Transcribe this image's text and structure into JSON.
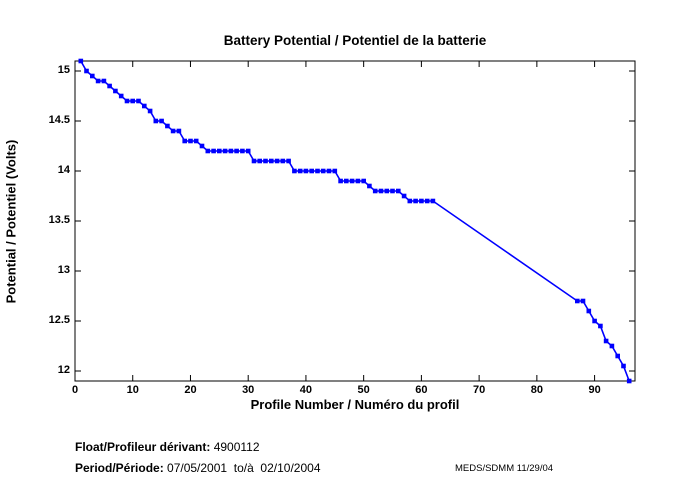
{
  "chart_data": {
    "type": "line",
    "title": "Battery Potential / Potentiel de la batterie",
    "xlabel": "Profile Number / Numéro du profil",
    "ylabel": "Potential / Potentiel (Volts)",
    "xlim": [
      0,
      97
    ],
    "ylim": [
      11.9,
      15.1
    ],
    "x_ticks": [
      0,
      10,
      20,
      30,
      40,
      50,
      60,
      70,
      80,
      90
    ],
    "y_ticks": [
      12,
      12.5,
      13,
      13.5,
      14,
      14.5,
      15
    ],
    "grid": false,
    "legend": "none",
    "line_color": "#0000FF",
    "marker": "square",
    "axis_color": "#000000",
    "series": [
      {
        "name": "battery_potential_volts",
        "points": [
          [
            1,
            15.1
          ],
          [
            2,
            15.0
          ],
          [
            3,
            14.95
          ],
          [
            4,
            14.9
          ],
          [
            5,
            14.9
          ],
          [
            6,
            14.85
          ],
          [
            7,
            14.8
          ],
          [
            8,
            14.75
          ],
          [
            9,
            14.7
          ],
          [
            10,
            14.7
          ],
          [
            11,
            14.7
          ],
          [
            12,
            14.65
          ],
          [
            13,
            14.6
          ],
          [
            14,
            14.5
          ],
          [
            15,
            14.5
          ],
          [
            16,
            14.45
          ],
          [
            17,
            14.4
          ],
          [
            18,
            14.4
          ],
          [
            19,
            14.3
          ],
          [
            20,
            14.3
          ],
          [
            21,
            14.3
          ],
          [
            22,
            14.25
          ],
          [
            23,
            14.2
          ],
          [
            24,
            14.2
          ],
          [
            25,
            14.2
          ],
          [
            26,
            14.2
          ],
          [
            27,
            14.2
          ],
          [
            28,
            14.2
          ],
          [
            29,
            14.2
          ],
          [
            30,
            14.2
          ],
          [
            31,
            14.1
          ],
          [
            32,
            14.1
          ],
          [
            33,
            14.1
          ],
          [
            34,
            14.1
          ],
          [
            35,
            14.1
          ],
          [
            36,
            14.1
          ],
          [
            37,
            14.1
          ],
          [
            38,
            14.0
          ],
          [
            39,
            14.0
          ],
          [
            40,
            14.0
          ],
          [
            41,
            14.0
          ],
          [
            42,
            14.0
          ],
          [
            43,
            14.0
          ],
          [
            44,
            14.0
          ],
          [
            45,
            14.0
          ],
          [
            46,
            13.9
          ],
          [
            47,
            13.9
          ],
          [
            48,
            13.9
          ],
          [
            49,
            13.9
          ],
          [
            50,
            13.9
          ],
          [
            51,
            13.85
          ],
          [
            52,
            13.8
          ],
          [
            53,
            13.8
          ],
          [
            54,
            13.8
          ],
          [
            55,
            13.8
          ],
          [
            56,
            13.8
          ],
          [
            57,
            13.75
          ],
          [
            58,
            13.7
          ],
          [
            59,
            13.7
          ],
          [
            60,
            13.7
          ],
          [
            61,
            13.7
          ],
          [
            62,
            13.7
          ],
          [
            87,
            12.7
          ],
          [
            88,
            12.7
          ],
          [
            89,
            12.6
          ],
          [
            90,
            12.5
          ],
          [
            91,
            12.45
          ],
          [
            92,
            12.3
          ],
          [
            93,
            12.25
          ],
          [
            94,
            12.15
          ],
          [
            95,
            12.05
          ],
          [
            96,
            11.9
          ]
        ]
      }
    ]
  },
  "footer": {
    "float_label": "Float/Profileur dérivant:",
    "float_value": " 4900112",
    "period_label": "Period/Période:",
    "period_value": " 07/05/2001  to/à  02/10/2004",
    "stamp": "MEDS/SDMM  11/29/04"
  }
}
